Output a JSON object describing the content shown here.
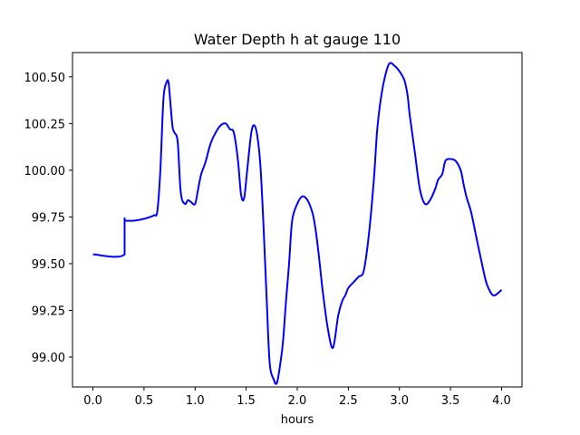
{
  "chart_data": {
    "type": "line",
    "title": "Water Depth h at gauge 110",
    "xlabel": "hours",
    "ylabel": "",
    "xlim": [
      -0.2,
      4.2
    ],
    "ylim": [
      98.84,
      100.63
    ],
    "xticks": [
      0.0,
      0.5,
      1.0,
      1.5,
      2.0,
      2.5,
      3.0,
      3.5,
      4.0
    ],
    "xtick_labels": [
      "0.0",
      "0.5",
      "1.0",
      "1.5",
      "2.0",
      "2.5",
      "3.0",
      "3.5",
      "4.0"
    ],
    "yticks": [
      99.0,
      99.25,
      99.5,
      99.75,
      100.0,
      100.25,
      100.5
    ],
    "ytick_labels": [
      "99.00",
      "99.25",
      "99.50",
      "99.75",
      "100.00",
      "100.25",
      "100.50"
    ],
    "grid": false,
    "series": [
      {
        "color": "#0000ff",
        "x": [
          0.0,
          0.31,
          0.31,
          0.32,
          0.4,
          0.5,
          0.56,
          0.6,
          0.63,
          0.66,
          0.69,
          0.72,
          0.74,
          0.76,
          0.78,
          0.8,
          0.83,
          0.86,
          0.9,
          0.93,
          0.96,
          1.0,
          1.03,
          1.06,
          1.1,
          1.15,
          1.2,
          1.25,
          1.3,
          1.34,
          1.38,
          1.42,
          1.45,
          1.48,
          1.51,
          1.55,
          1.58,
          1.61,
          1.64,
          1.67,
          1.7,
          1.73,
          1.77,
          1.8,
          1.83,
          1.86,
          1.89,
          1.92,
          1.95,
          2.0,
          2.05,
          2.1,
          2.15,
          2.18,
          2.21,
          2.25,
          2.3,
          2.35,
          2.4,
          2.44,
          2.47,
          2.5,
          2.55,
          2.6,
          2.65,
          2.7,
          2.75,
          2.78,
          2.81,
          2.85,
          2.9,
          2.95,
          3.0,
          3.05,
          3.08,
          3.1,
          3.15,
          3.2,
          3.25,
          3.3,
          3.35,
          3.38,
          3.42,
          3.45,
          3.5,
          3.55,
          3.6,
          3.63,
          3.66,
          3.7,
          3.75,
          3.8,
          3.85,
          3.9,
          3.93,
          3.96,
          4.0
        ],
        "y": [
          99.55,
          99.55,
          99.73,
          99.73,
          99.73,
          99.74,
          99.75,
          99.76,
          99.78,
          100.0,
          100.38,
          100.47,
          100.47,
          100.35,
          100.23,
          100.2,
          100.15,
          99.88,
          99.82,
          99.84,
          99.83,
          99.82,
          99.9,
          99.98,
          100.04,
          100.14,
          100.2,
          100.24,
          100.25,
          100.22,
          100.2,
          100.05,
          99.87,
          99.85,
          100.0,
          100.2,
          100.24,
          100.18,
          100.02,
          99.7,
          99.32,
          98.97,
          98.88,
          98.86,
          98.95,
          99.08,
          99.3,
          99.5,
          99.73,
          99.82,
          99.86,
          99.84,
          99.77,
          99.68,
          99.55,
          99.35,
          99.15,
          99.05,
          99.22,
          99.3,
          99.33,
          99.37,
          99.4,
          99.43,
          99.46,
          99.65,
          99.95,
          100.2,
          100.35,
          100.48,
          100.57,
          100.56,
          100.53,
          100.48,
          100.4,
          100.3,
          100.1,
          99.9,
          99.82,
          99.84,
          99.9,
          99.95,
          99.98,
          100.05,
          100.06,
          100.05,
          100.0,
          99.92,
          99.85,
          99.78,
          99.65,
          99.52,
          99.4,
          99.34,
          99.33,
          99.34,
          99.36
        ]
      }
    ]
  }
}
